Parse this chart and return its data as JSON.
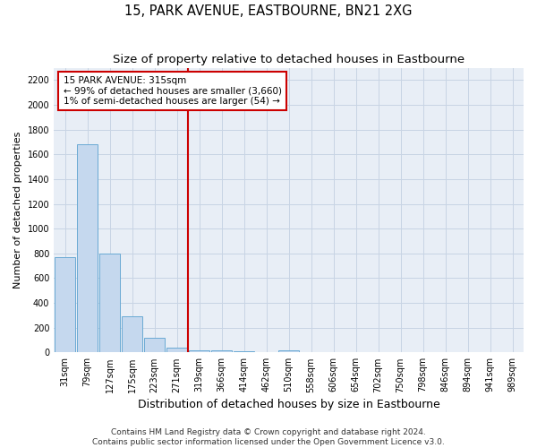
{
  "title": "15, PARK AVENUE, EASTBOURNE, BN21 2XG",
  "subtitle": "Size of property relative to detached houses in Eastbourne",
  "xlabel": "Distribution of detached houses by size in Eastbourne",
  "ylabel": "Number of detached properties",
  "categories": [
    "31sqm",
    "79sqm",
    "127sqm",
    "175sqm",
    "223sqm",
    "271sqm",
    "319sqm",
    "366sqm",
    "414sqm",
    "462sqm",
    "510sqm",
    "558sqm",
    "606sqm",
    "654sqm",
    "702sqm",
    "750sqm",
    "798sqm",
    "846sqm",
    "894sqm",
    "941sqm",
    "989sqm"
  ],
  "values": [
    770,
    1680,
    800,
    295,
    120,
    35,
    20,
    18,
    10,
    0,
    15,
    0,
    0,
    0,
    0,
    0,
    0,
    0,
    0,
    0,
    0
  ],
  "bar_color": "#c5d8ee",
  "bar_edge_color": "#6aaad4",
  "vline_x": 5.5,
  "vline_color": "#cc0000",
  "annotation_line1": "15 PARK AVENUE: 315sqm",
  "annotation_line2": "← 99% of detached houses are smaller (3,660)",
  "annotation_line3": "1% of semi-detached houses are larger (54) →",
  "annotation_box_color": "#cc0000",
  "ylim": [
    0,
    2300
  ],
  "yticks": [
    0,
    200,
    400,
    600,
    800,
    1000,
    1200,
    1400,
    1600,
    1800,
    2000,
    2200
  ],
  "footer1": "Contains HM Land Registry data © Crown copyright and database right 2024.",
  "footer2": "Contains public sector information licensed under the Open Government Licence v3.0.",
  "bg_color": "#ffffff",
  "plot_bg_color": "#e8eef6",
  "grid_color": "#c8d4e4",
  "title_fontsize": 10.5,
  "subtitle_fontsize": 9.5,
  "xlabel_fontsize": 9,
  "ylabel_fontsize": 8,
  "tick_fontsize": 7,
  "footer_fontsize": 6.5,
  "annotation_fontsize": 7.5
}
